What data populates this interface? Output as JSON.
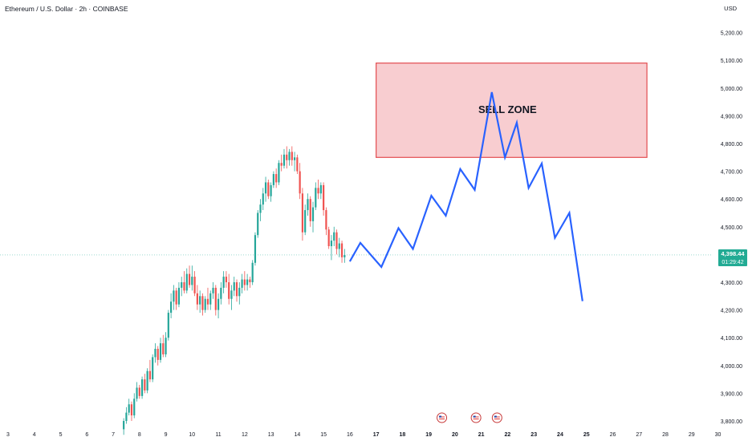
{
  "header": {
    "title": "Ethereum / U.S. Dollar · 2h · COINBASE",
    "currency": "USD"
  },
  "price_label": {
    "price": "4,398.44",
    "countdown": "01:29:42"
  },
  "sell_zone": {
    "label": "SELL ZONE",
    "top": 5090,
    "bottom": 4750,
    "from_day": 17,
    "to_day": 27.3
  },
  "colors": {
    "up": "#26a69a",
    "down": "#ef5350",
    "projection": "#2962ff",
    "zone_fill": "#f8c8cc",
    "zone_border": "#e03a3e",
    "price_tag": "#22ab94"
  },
  "event_icons": [
    {
      "icon": "us-flag-icon",
      "day": 19.5
    },
    {
      "icon": "us-flag-icon",
      "day": 20.8
    },
    {
      "icon": "us-flag-icon",
      "day": 21.6
    }
  ],
  "chart_data": {
    "type": "candlestick",
    "ylim": [
      3780,
      5260
    ],
    "y_ticks": [
      3800,
      3900,
      4000,
      4100,
      4200,
      4300,
      4400,
      4500,
      4600,
      4700,
      4800,
      4900,
      5000,
      5100,
      5200
    ],
    "y_tick_labels": [
      "3,800.00",
      "3,900.00",
      "4,000.00",
      "4,100.00",
      "4,200.00",
      "4,300.00",
      "4,400.00",
      "4,500.00",
      "4,600.00",
      "4,700.00",
      "4,800.00",
      "4,900.00",
      "5,000.00",
      "5,100.00",
      "5,200.00"
    ],
    "x_ticks": [
      3,
      4,
      5,
      6,
      7,
      8,
      9,
      10,
      11,
      12,
      13,
      14,
      15,
      16,
      17,
      18,
      19,
      20,
      21,
      22,
      23,
      24,
      25,
      26,
      27,
      28,
      29,
      30
    ],
    "x_tick_labels": [
      "3",
      "4",
      "5",
      "6",
      "7",
      "8",
      "9",
      "10",
      "11",
      "12",
      "13",
      "14",
      "15",
      "16",
      "17",
      "18",
      "19",
      "20",
      "21",
      "22",
      "23",
      "24",
      "25",
      "26",
      "27",
      "28",
      "29",
      "30"
    ],
    "bold_x_ticks": [
      17,
      18,
      19,
      20,
      21,
      22,
      23,
      24,
      25
    ],
    "last_price": 4398.44,
    "candles": [
      [
        7.4,
        3770,
        3810,
        3750,
        3800
      ],
      [
        7.5,
        3800,
        3850,
        3790,
        3830
      ],
      [
        7.6,
        3830,
        3880,
        3820,
        3860
      ],
      [
        7.7,
        3860,
        3870,
        3800,
        3820
      ],
      [
        7.8,
        3820,
        3900,
        3810,
        3880
      ],
      [
        7.9,
        3880,
        3940,
        3870,
        3920
      ],
      [
        8.0,
        3920,
        3930,
        3880,
        3890
      ],
      [
        8.1,
        3890,
        3960,
        3880,
        3950
      ],
      [
        8.2,
        3950,
        3970,
        3900,
        3910
      ],
      [
        8.3,
        3910,
        3990,
        3900,
        3980
      ],
      [
        8.4,
        3980,
        4020,
        3940,
        3950
      ],
      [
        8.5,
        3950,
        4040,
        3940,
        4030
      ],
      [
        8.6,
        4030,
        4080,
        4010,
        4060
      ],
      [
        8.7,
        4060,
        4070,
        4000,
        4020
      ],
      [
        8.8,
        4020,
        4100,
        4010,
        4080
      ],
      [
        8.9,
        4080,
        4110,
        4030,
        4040
      ],
      [
        9.0,
        4040,
        4120,
        4030,
        4100
      ],
      [
        9.1,
        4100,
        4200,
        4090,
        4190
      ],
      [
        9.2,
        4190,
        4260,
        4170,
        4230
      ],
      [
        9.3,
        4230,
        4290,
        4200,
        4270
      ],
      [
        9.4,
        4270,
        4280,
        4200,
        4220
      ],
      [
        9.5,
        4220,
        4300,
        4210,
        4280
      ],
      [
        9.6,
        4280,
        4320,
        4250,
        4300
      ],
      [
        9.7,
        4300,
        4340,
        4260,
        4270
      ],
      [
        9.8,
        4270,
        4350,
        4260,
        4330
      ],
      [
        9.9,
        4330,
        4360,
        4280,
        4290
      ],
      [
        10.0,
        4290,
        4360,
        4270,
        4320
      ],
      [
        10.1,
        4320,
        4340,
        4250,
        4260
      ],
      [
        10.2,
        4260,
        4290,
        4200,
        4220
      ],
      [
        10.3,
        4220,
        4270,
        4190,
        4250
      ],
      [
        10.4,
        4250,
        4260,
        4180,
        4200
      ],
      [
        10.5,
        4200,
        4250,
        4190,
        4240
      ],
      [
        10.6,
        4240,
        4280,
        4200,
        4220
      ],
      [
        10.7,
        4220,
        4270,
        4200,
        4260
      ],
      [
        10.8,
        4260,
        4300,
        4240,
        4280
      ],
      [
        10.9,
        4280,
        4290,
        4180,
        4200
      ],
      [
        11.0,
        4200,
        4260,
        4170,
        4240
      ],
      [
        11.1,
        4240,
        4300,
        4220,
        4280
      ],
      [
        11.2,
        4280,
        4340,
        4260,
        4320
      ],
      [
        11.3,
        4320,
        4340,
        4280,
        4300
      ],
      [
        11.4,
        4300,
        4330,
        4220,
        4240
      ],
      [
        11.5,
        4240,
        4290,
        4200,
        4270
      ],
      [
        11.6,
        4270,
        4320,
        4250,
        4300
      ],
      [
        11.7,
        4300,
        4310,
        4230,
        4250
      ],
      [
        11.8,
        4250,
        4300,
        4220,
        4280
      ],
      [
        11.9,
        4280,
        4330,
        4260,
        4310
      ],
      [
        12.0,
        4310,
        4340,
        4270,
        4290
      ],
      [
        12.1,
        4290,
        4330,
        4270,
        4310
      ],
      [
        12.2,
        4310,
        4320,
        4280,
        4300
      ],
      [
        12.3,
        4300,
        4380,
        4290,
        4370
      ],
      [
        12.4,
        4370,
        4480,
        4360,
        4470
      ],
      [
        12.5,
        4470,
        4560,
        4460,
        4550
      ],
      [
        12.6,
        4550,
        4600,
        4520,
        4580
      ],
      [
        12.7,
        4580,
        4640,
        4560,
        4620
      ],
      [
        12.8,
        4620,
        4680,
        4590,
        4660
      ],
      [
        12.9,
        4660,
        4670,
        4600,
        4610
      ],
      [
        13.0,
        4610,
        4660,
        4590,
        4650
      ],
      [
        13.1,
        4650,
        4700,
        4640,
        4690
      ],
      [
        13.2,
        4690,
        4710,
        4640,
        4660
      ],
      [
        13.3,
        4660,
        4740,
        4650,
        4730
      ],
      [
        13.4,
        4730,
        4760,
        4700,
        4720
      ],
      [
        13.5,
        4720,
        4780,
        4710,
        4760
      ],
      [
        13.6,
        4760,
        4790,
        4710,
        4740
      ],
      [
        13.7,
        4740,
        4780,
        4720,
        4770
      ],
      [
        13.8,
        4770,
        4790,
        4720,
        4740
      ],
      [
        13.9,
        4740,
        4770,
        4700,
        4750
      ],
      [
        14.0,
        4750,
        4760,
        4690,
        4700
      ],
      [
        14.1,
        4700,
        4730,
        4600,
        4620
      ],
      [
        14.2,
        4620,
        4640,
        4450,
        4480
      ],
      [
        14.3,
        4480,
        4580,
        4470,
        4560
      ],
      [
        14.4,
        4560,
        4620,
        4540,
        4600
      ],
      [
        14.5,
        4600,
        4610,
        4500,
        4520
      ],
      [
        14.6,
        4520,
        4590,
        4480,
        4570
      ],
      [
        14.7,
        4570,
        4660,
        4560,
        4640
      ],
      [
        14.8,
        4640,
        4670,
        4600,
        4620
      ],
      [
        14.9,
        4620,
        4660,
        4600,
        4650
      ],
      [
        15.0,
        4650,
        4660,
        4540,
        4560
      ],
      [
        15.1,
        4560,
        4570,
        4470,
        4490
      ],
      [
        15.2,
        4490,
        4500,
        4420,
        4430
      ],
      [
        15.3,
        4430,
        4470,
        4380,
        4450
      ],
      [
        15.4,
        4450,
        4500,
        4430,
        4480
      ],
      [
        15.5,
        4480,
        4490,
        4400,
        4420
      ],
      [
        15.6,
        4420,
        4460,
        4390,
        4440
      ],
      [
        15.7,
        4440,
        4450,
        4370,
        4390
      ],
      [
        15.8,
        4390,
        4420,
        4370,
        4398
      ]
    ],
    "projection": {
      "type": "line",
      "x": [
        16.0,
        16.4,
        17.2,
        17.85,
        18.4,
        19.1,
        19.65,
        20.2,
        20.75,
        21.4,
        21.9,
        22.35,
        22.8,
        23.3,
        23.8,
        24.35
      ],
      "y": [
        4375,
        4442,
        4355,
        4495,
        4420,
        4612,
        4540,
        4708,
        4633,
        4985,
        4750,
        4875,
        4640,
        4728,
        4460,
        4550
      ]
    },
    "projection_end": {
      "x": 24.85,
      "y": 4232
    }
  }
}
